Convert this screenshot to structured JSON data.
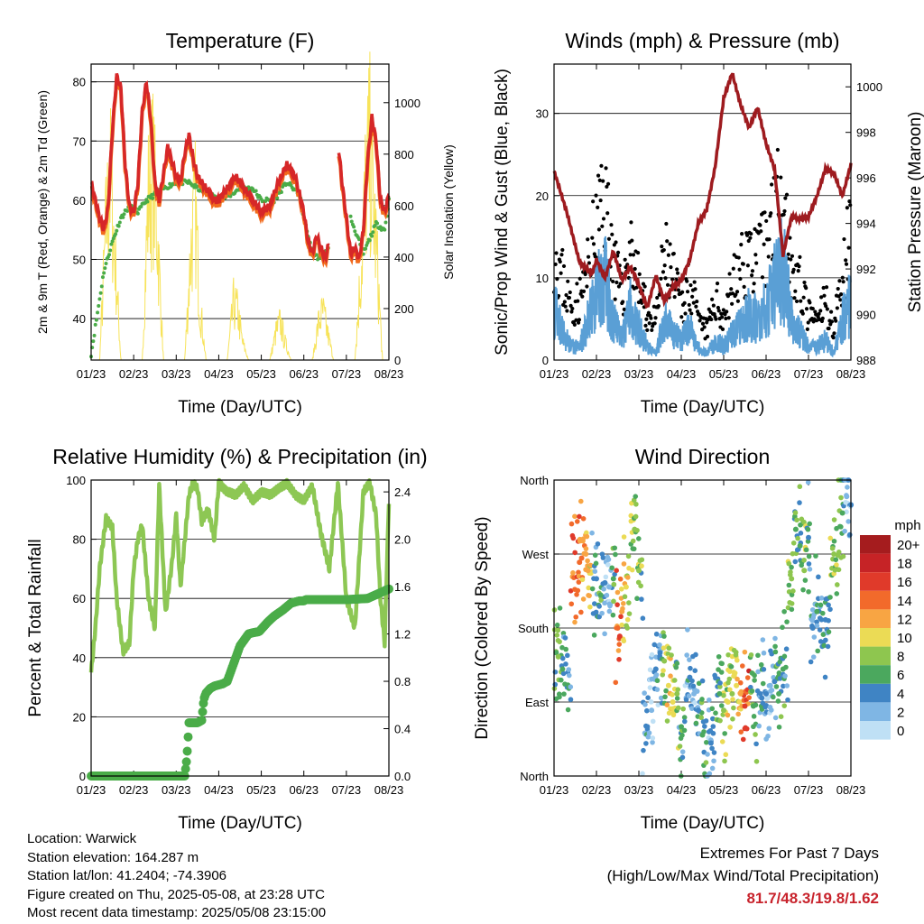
{
  "chart_data": [
    {
      "type": "line",
      "title": "Temperature (F)",
      "xlabel": "Time (Day/UTC)",
      "ylabel": "2m & 9m T (Red, Orange) & 2m Td (Green)",
      "y2label": "Solar Insolation (Yellow)",
      "x_ticks": [
        "01/23",
        "02/23",
        "03/23",
        "04/23",
        "05/23",
        "06/23",
        "07/23",
        "08/23"
      ],
      "ylim": [
        33,
        83
      ],
      "y_ticks": [
        40,
        50,
        60,
        70,
        80
      ],
      "y2lim": [
        0,
        1150
      ],
      "y2_ticks": [
        0,
        200,
        400,
        600,
        800,
        1000
      ],
      "grid": true,
      "colors": {
        "t2m": "#d62728",
        "t9m": "#f26b1d",
        "td": "#4aac48",
        "solar": "#f7e35a"
      },
      "series": [
        {
          "name": "2m T",
          "axis": "left",
          "x": [
            0,
            0.1,
            0.2,
            0.3,
            0.4,
            0.5,
            0.6,
            0.7,
            0.8,
            0.9,
            1.0,
            1.1,
            1.2,
            1.3,
            1.4,
            1.5,
            1.6,
            1.8,
            2.0,
            2.1,
            2.2,
            2.3,
            2.4,
            2.5,
            2.6,
            2.7,
            2.8,
            2.9,
            3.0,
            3.2,
            3.4,
            3.6,
            3.8,
            4.0,
            4.2,
            4.4,
            4.6,
            4.8,
            5.0,
            5.1,
            5.2,
            5.3,
            5.4,
            5.5,
            5.6,
            5.7,
            5.8,
            5.9,
            6.0,
            6.1,
            6.2,
            6.3,
            6.4,
            6.5,
            6.6,
            6.7,
            6.8,
            6.9,
            7.0
          ],
          "y": [
            63,
            60,
            57,
            55,
            59,
            72,
            81,
            79,
            66,
            59,
            58,
            63,
            75,
            80,
            74,
            63,
            60,
            69,
            64,
            63,
            68,
            71,
            67,
            64,
            63,
            62,
            61,
            60,
            60,
            62,
            64,
            62,
            60,
            58,
            59,
            63,
            66,
            64,
            58,
            53,
            51,
            54,
            52,
            50,
            53,
            null,
            70,
            63,
            57,
            51,
            52,
            50,
            55,
            67,
            74,
            70,
            60,
            58,
            61
          ]
        },
        {
          "name": "Td",
          "axis": "left",
          "x": [
            0,
            0.15,
            0.3,
            0.5,
            0.7,
            0.9,
            1.1,
            1.3,
            1.5,
            1.7,
            2.0,
            2.3,
            2.5,
            2.8,
            3.0,
            3.3,
            3.5,
            3.8,
            4.0,
            4.3,
            4.6,
            4.9,
            5.0,
            5.2,
            5.4,
            5.6,
            5.8,
            6.1,
            6.4,
            6.7,
            6.9,
            7.0
          ],
          "y": [
            34,
            41,
            48,
            53,
            57,
            59,
            58,
            60,
            61,
            62,
            63,
            63,
            62,
            61,
            60,
            61,
            62,
            62,
            60,
            60,
            63,
            61,
            57,
            51,
            50,
            52,
            null,
            57,
            51,
            56,
            55,
            60
          ]
        },
        {
          "name": "Solar Insolation",
          "axis": "right",
          "x": [
            0,
            0.2,
            0.35,
            0.45,
            0.55,
            0.7,
            0.85,
            1.0,
            1.2,
            1.35,
            1.45,
            1.55,
            1.7,
            1.85,
            2.0,
            2.2,
            2.35,
            2.45,
            2.55,
            2.7,
            2.85,
            3.0,
            3.2,
            3.35,
            3.45,
            3.55,
            3.7,
            3.85,
            4.0,
            4.2,
            4.35,
            4.45,
            4.55,
            4.7,
            4.85,
            5.0,
            5.2,
            5.35,
            5.45,
            5.55,
            5.7,
            5.85,
            6.0,
            6.2,
            6.35,
            6.45,
            6.55,
            6.7,
            6.85,
            7.0
          ],
          "y": [
            0,
            0,
            700,
            950,
            600,
            0,
            0,
            0,
            0,
            900,
            1000,
            700,
            0,
            0,
            0,
            0,
            600,
            800,
            300,
            0,
            0,
            0,
            0,
            300,
            250,
            100,
            0,
            0,
            0,
            0,
            150,
            200,
            100,
            0,
            0,
            0,
            0,
            200,
            250,
            150,
            0,
            0,
            0,
            0,
            500,
            900,
            1100,
            600,
            0,
            0
          ]
        }
      ]
    },
    {
      "type": "scatter",
      "title": "Winds (mph) & Pressure (mb)",
      "xlabel": "Time (Day/UTC)",
      "ylabel": "Sonic/Prop Wind & Gust (Blue, Black)",
      "y2label": "Station Pressure (Maroon)",
      "x_ticks": [
        "01/23",
        "02/23",
        "03/23",
        "04/23",
        "05/23",
        "06/23",
        "07/23",
        "08/23"
      ],
      "ylim": [
        0,
        36
      ],
      "y_ticks": [
        0,
        10,
        20,
        30
      ],
      "y2lim": [
        988,
        1001
      ],
      "y2_ticks": [
        988,
        990,
        992,
        994,
        996,
        998,
        1000
      ],
      "grid": true,
      "colors": {
        "wind": "#5a9fd5",
        "gust": "#000000",
        "pressure": "#9e1b1f"
      },
      "series": [
        {
          "name": "Wind",
          "x": [
            0,
            0.2,
            0.4,
            0.6,
            0.8,
            1.0,
            1.2,
            1.4,
            1.6,
            1.8,
            2.0,
            2.2,
            2.4,
            2.6,
            2.8,
            3.0,
            3.2,
            3.4,
            3.6,
            3.8,
            4.0,
            4.2,
            4.4,
            4.6,
            4.8,
            5.0,
            5.2,
            5.4,
            5.6,
            5.8,
            6.0,
            6.2,
            6.4,
            6.6,
            6.8,
            7.0
          ],
          "y": [
            8,
            4,
            2,
            2,
            6,
            10,
            12,
            6,
            3,
            8,
            5,
            2,
            1,
            6,
            4,
            3,
            5,
            2,
            1,
            3,
            2,
            4,
            5,
            7,
            6,
            8,
            11,
            14,
            6,
            4,
            2,
            2,
            3,
            1,
            6,
            9
          ]
        },
        {
          "name": "Gust",
          "x": [
            0,
            0.2,
            0.4,
            0.6,
            0.8,
            1.0,
            1.2,
            1.4,
            1.6,
            1.8,
            2.0,
            2.2,
            2.4,
            2.6,
            2.8,
            3.0,
            3.2,
            3.4,
            3.6,
            3.8,
            4.0,
            4.2,
            4.4,
            4.6,
            4.8,
            5.0,
            5.2,
            5.4,
            5.6,
            5.8,
            6.0,
            6.2,
            6.4,
            6.6,
            6.8,
            7.0
          ],
          "y": [
            15,
            11,
            7,
            8,
            12,
            18,
            22,
            14,
            8,
            16,
            10,
            6,
            5,
            14,
            11,
            7,
            11,
            5,
            4,
            8,
            6,
            10,
            12,
            15,
            13,
            16,
            20,
            24,
            12,
            10,
            6,
            5,
            8,
            4,
            12,
            18
          ]
        },
        {
          "name": "Pressure",
          "x": [
            0,
            0.3,
            0.6,
            0.9,
            1.0,
            1.2,
            1.4,
            1.6,
            1.8,
            2.0,
            2.2,
            2.4,
            2.6,
            2.8,
            3.0,
            3.2,
            3.4,
            3.6,
            3.8,
            4.0,
            4.2,
            4.4,
            4.6,
            4.8,
            5.0,
            5.2,
            5.4,
            5.6,
            5.8,
            6.0,
            6.2,
            6.4,
            6.6,
            6.8,
            7.0
          ],
          "y": [
            996.3,
            994.5,
            992.3,
            991.8,
            992.4,
            991.6,
            992.8,
            991.5,
            992.1,
            991.3,
            990.3,
            991.7,
            990.6,
            991.2,
            991.5,
            992.4,
            994,
            994.6,
            996.5,
            999.5,
            1000.6,
            999.2,
            998.2,
            999.1,
            997.5,
            996.4,
            992.6,
            994.3,
            994.2,
            994.3,
            995.2,
            996.4,
            996.2,
            995.2,
            996.6
          ]
        }
      ]
    },
    {
      "type": "line",
      "title": "Relative Humidity (%) & Precipitation (in)",
      "xlabel": "Time (Day/UTC)",
      "ylabel": "Percent & Total Rainfall",
      "x_ticks": [
        "01/23",
        "02/23",
        "03/23",
        "04/23",
        "05/23",
        "06/23",
        "07/23",
        "08/23"
      ],
      "ylim": [
        0,
        100
      ],
      "y_ticks": [
        0,
        20,
        40,
        60,
        80,
        100
      ],
      "y2lim": [
        0,
        2.5
      ],
      "y2_ticks": [
        0.0,
        0.4,
        0.8,
        1.2,
        1.6,
        2.0,
        2.4
      ],
      "grid": true,
      "colors": {
        "rh": "#8dc754",
        "precip": "#4aac48"
      },
      "series": [
        {
          "name": "RH",
          "axis": "left",
          "x": [
            0,
            0.1,
            0.2,
            0.35,
            0.5,
            0.6,
            0.75,
            0.9,
            1.0,
            1.1,
            1.2,
            1.35,
            1.5,
            1.6,
            1.75,
            1.9,
            2.0,
            2.1,
            2.3,
            2.4,
            2.5,
            2.6,
            2.75,
            2.9,
            3.0,
            3.2,
            3.4,
            3.6,
            3.8,
            4.0,
            4.2,
            4.4,
            4.6,
            4.8,
            5.0,
            5.2,
            5.4,
            5.6,
            5.8,
            6.0,
            6.2,
            6.4,
            6.55,
            6.7,
            6.8,
            6.9,
            7.0
          ],
          "y": [
            35,
            50,
            70,
            87,
            84,
            60,
            42,
            45,
            70,
            80,
            85,
            60,
            50,
            98,
            55,
            72,
            88,
            64,
            95,
            99,
            97,
            86,
            90,
            80,
            99,
            96,
            95,
            98,
            93,
            96,
            95,
            97,
            99,
            95,
            93,
            98,
            82,
            70,
            99,
            60,
            50,
            96,
            99,
            88,
            60,
            45,
            93
          ]
        },
        {
          "name": "Precipitation",
          "axis": "right",
          "x": [
            0,
            2.2,
            2.25,
            2.3,
            2.5,
            2.6,
            2.65,
            2.7,
            2.8,
            2.9,
            3.0,
            3.1,
            3.2,
            3.3,
            3.5,
            3.7,
            3.8,
            3.95,
            4.0,
            4.15,
            4.3,
            4.5,
            4.7,
            4.9,
            5.0,
            5.05,
            5.3,
            5.5,
            6.0,
            6.5,
            7.0
          ],
          "y": [
            0,
            0,
            0.15,
            0.45,
            0.45,
            0.47,
            0.65,
            0.7,
            0.74,
            0.76,
            0.77,
            0.78,
            0.8,
            0.9,
            1.1,
            1.2,
            1.21,
            1.22,
            1.24,
            1.3,
            1.35,
            1.4,
            1.46,
            1.48,
            1.48,
            1.49,
            1.49,
            1.49,
            1.49,
            1.5,
            1.58
          ]
        }
      ]
    },
    {
      "type": "scatter",
      "title": "Wind Direction",
      "xlabel": "Time (Day/UTC)",
      "ylabel": "Direction (Colored By Speed)",
      "x_ticks": [
        "01/23",
        "02/23",
        "03/23",
        "04/23",
        "05/23",
        "06/23",
        "07/23",
        "08/23"
      ],
      "y_ticks": [
        "North",
        "East",
        "South",
        "West",
        "North"
      ],
      "ylim": [
        0,
        360
      ],
      "grid": true,
      "legend": {
        "position": "right",
        "unit": "mph",
        "labels": [
          "20+",
          "18",
          "16",
          "14",
          "12",
          "10",
          "8",
          "6",
          "4",
          "2",
          "0"
        ],
        "colors": [
          "#a51c1e",
          "#c62326",
          "#e03a2a",
          "#f26a2b",
          "#f8a543",
          "#ebdb55",
          "#8ec64f",
          "#4ba85e",
          "#3f84c4",
          "#7fb6e4",
          "#bfe0f5"
        ]
      },
      "series": [
        {
          "name": "Direction",
          "x": [
            0.05,
            0.1,
            0.2,
            0.6,
            0.65,
            0.75,
            0.8,
            1.0,
            1.1,
            1.2,
            1.3,
            1.4,
            1.5,
            1.55,
            1.6,
            1.7,
            1.9,
            2.0,
            2.2,
            2.3,
            2.4,
            2.5,
            2.6,
            2.7,
            2.8,
            2.9,
            3.0,
            3.2,
            3.3,
            3.4,
            3.5,
            3.7,
            3.9,
            4.0,
            4.1,
            4.2,
            4.3,
            4.4,
            4.5,
            4.7,
            4.9,
            5.0,
            5.1,
            5.2,
            5.3,
            5.4,
            5.6,
            5.7,
            5.8,
            5.9,
            6.0,
            6.1,
            6.2,
            6.4,
            6.6,
            6.8,
            6.9,
            7.0
          ],
          "y": [
            150,
            145,
            130,
            260,
            265,
            270,
            250,
            240,
            220,
            235,
            230,
            240,
            180,
            170,
            200,
            230,
            300,
            250,
            60,
            80,
            130,
            150,
            140,
            110,
            90,
            100,
            60,
            120,
            100,
            80,
            50,
            40,
            100,
            80,
            90,
            100,
            110,
            100,
            85,
            85,
            95,
            100,
            110,
            115,
            100,
            130,
            240,
            300,
            280,
            250,
            290,
            180,
            200,
            190,
            270,
            320,
            340,
            330
          ],
          "speed": [
            6,
            7,
            5,
            14,
            13,
            12,
            11,
            4,
            5,
            3,
            2,
            6,
            14,
            15,
            12,
            10,
            8,
            7,
            3,
            2,
            4,
            3,
            8,
            9,
            10,
            7,
            5,
            3,
            2,
            4,
            5,
            3,
            6,
            8,
            9,
            8,
            10,
            12,
            15,
            6,
            4,
            3,
            2,
            4,
            6,
            5,
            7,
            6,
            5,
            8,
            4,
            3,
            5,
            4,
            8,
            6,
            2,
            3
          ]
        }
      ]
    }
  ],
  "info": {
    "location": "Location: Warwick",
    "elevation": "Station elevation: 164.287 m",
    "latlon": "Station lat/lon: 41.2404; -74.3906",
    "created": "Figure created on Thu, 2025-05-08, at 23:28 UTC",
    "recent": "Most recent data timestamp: 2025/05/08 23:15:00"
  },
  "extremes": {
    "heading": "Extremes For Past 7 Days",
    "sub": "(High/Low/Max Wind/Total Precipitation)",
    "values": "81.7/48.3/19.8/1.62"
  }
}
